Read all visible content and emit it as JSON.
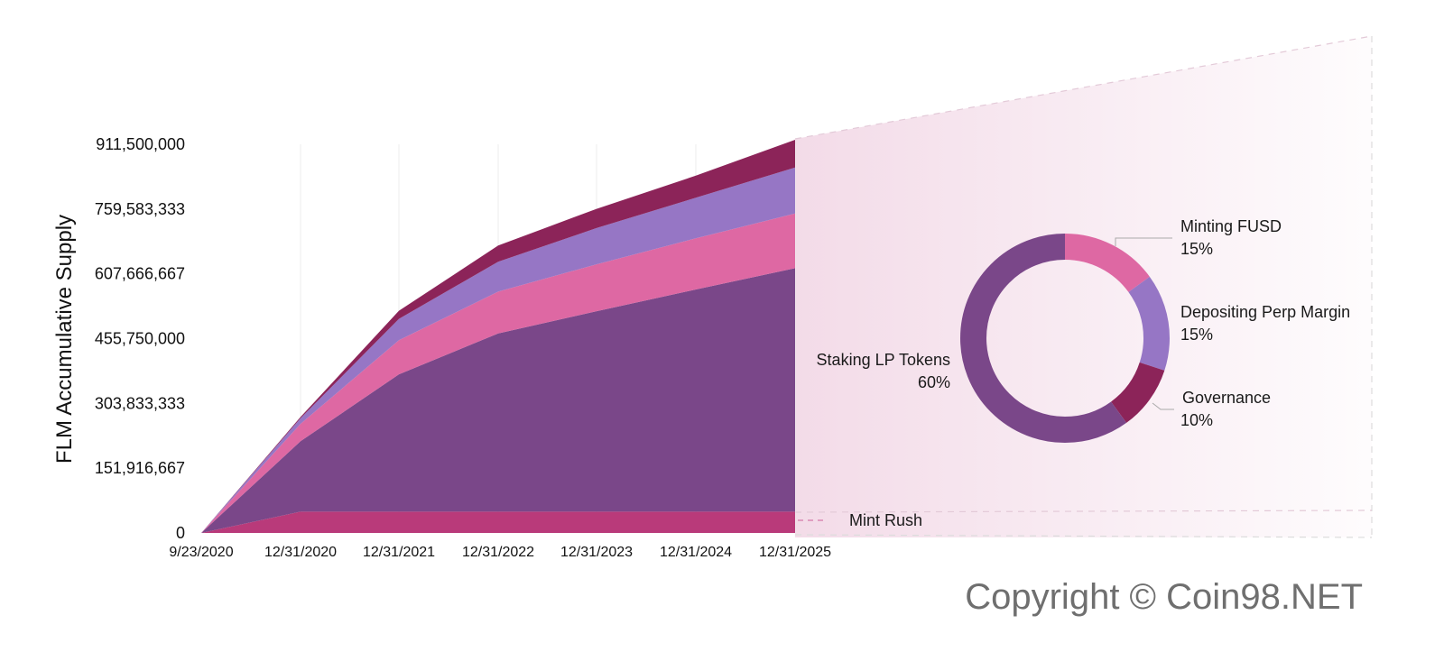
{
  "chart_data": {
    "type": "area",
    "stacked": true,
    "ylabel": "FLM Accumulative Supply",
    "xlabel": "",
    "x_ticks": [
      "9/23/2020",
      "12/31/2020",
      "12/31/2021",
      "12/31/2022",
      "12/31/2023",
      "12/31/2024",
      "12/31/2025"
    ],
    "y_ticks": [
      "0",
      "151,916,667",
      "303,833,333",
      "455,750,000",
      "607,666,667",
      "759,583,333",
      "911,500,000"
    ],
    "ylim": [
      0,
      911500000
    ],
    "x": [
      "9/23/2020",
      "12/31/2020",
      "12/31/2021",
      "12/31/2022",
      "12/31/2023",
      "12/31/2024",
      "12/31/2025"
    ],
    "series": [
      {
        "name": "Mint Rush",
        "color": "#b93a7a",
        "values": [
          0,
          50000000,
          50000000,
          50000000,
          50000000,
          50000000,
          50000000
        ]
      },
      {
        "name": "Staking LP Tokens",
        "color": "#7a4789",
        "values": [
          0,
          165000000,
          322000000,
          418000000,
          470000000,
          521000000,
          571000000
        ]
      },
      {
        "name": "Minting FUSD",
        "color": "#de68a3",
        "values": [
          0,
          41000000,
          80000000,
          98000000,
          110000000,
          120000000,
          128000000
        ]
      },
      {
        "name": "Depositing Perp Margin",
        "color": "#9676c5",
        "values": [
          0,
          13000000,
          50000000,
          70000000,
          85000000,
          95000000,
          108000000
        ]
      },
      {
        "name": "Governance",
        "color": "#8c2459",
        "values": [
          0,
          3000000,
          19000000,
          38000000,
          45000000,
          52000000,
          65000000
        ]
      }
    ],
    "grid": "vertical",
    "donut": {
      "slices": [
        {
          "name": "Minting FUSD",
          "percent_label": "15%",
          "value": 15,
          "color": "#de68a3"
        },
        {
          "name": "Depositing Perp Margin",
          "percent_label": "15%",
          "value": 15,
          "color": "#9676c5"
        },
        {
          "name": "Governance",
          "percent_label": "10%",
          "value": 10,
          "color": "#8c2459"
        },
        {
          "name": "Staking LP Tokens",
          "percent_label": "60%",
          "value": 60,
          "color": "#7a4789"
        }
      ]
    },
    "annotations": [
      "Mint Rush"
    ]
  },
  "copyright": "Copyright © Coin98.NET"
}
